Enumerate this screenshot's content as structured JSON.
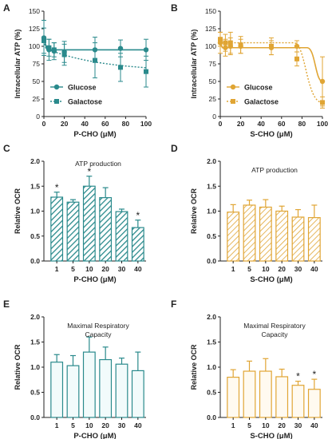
{
  "panel_letters": [
    "A",
    "B",
    "C",
    "D",
    "E",
    "F"
  ],
  "colors": {
    "teal": "#2a8a8c",
    "orange": "#e0a534",
    "axis": "#222222"
  },
  "chart_data": [
    {
      "panel": "A",
      "type": "line",
      "xlabel": "P-CHO (μM)",
      "ylabel": "Intracellular ATP (%)",
      "xlim": [
        0,
        100
      ],
      "ylim": [
        0,
        150
      ],
      "xticks": [
        0,
        20,
        40,
        60,
        80,
        100
      ],
      "yticks": [
        0,
        25,
        50,
        75,
        100,
        125,
        150
      ],
      "legend_position": "bottom-left",
      "series": [
        {
          "name": "Glucose",
          "marker": "circle",
          "line": "solid",
          "x": [
            0,
            5,
            10,
            20,
            50,
            75,
            100
          ],
          "y": [
            112,
            95,
            93,
            92,
            95,
            97,
            95
          ],
          "err": [
            25,
            15,
            12,
            15,
            18,
            12,
            15
          ]
        },
        {
          "name": "Galactose",
          "marker": "square",
          "line": "dotted",
          "x": [
            0,
            5,
            10,
            20,
            50,
            75,
            100
          ],
          "y": [
            108,
            98,
            95,
            88,
            80,
            70,
            64
          ],
          "err": [
            18,
            12,
            10,
            15,
            25,
            20,
            22
          ]
        }
      ]
    },
    {
      "panel": "B",
      "type": "line",
      "xlabel": "S-CHO (μM)",
      "ylabel": "Intracellular ATP (%)",
      "xlim": [
        0,
        100
      ],
      "ylim": [
        0,
        150
      ],
      "xticks": [
        0,
        20,
        40,
        60,
        80,
        100
      ],
      "yticks": [
        0,
        25,
        50,
        75,
        100,
        125,
        150
      ],
      "legend_position": "bottom-left",
      "series": [
        {
          "name": "Glucose",
          "marker": "circle",
          "line": "solid",
          "x": [
            0,
            5,
            10,
            20,
            50,
            75,
            100
          ],
          "y": [
            105,
            98,
            100,
            100,
            98,
            100,
            50
          ],
          "err": [
            15,
            12,
            12,
            10,
            10,
            8,
            35
          ]
        },
        {
          "name": "Galactose",
          "marker": "square",
          "line": "dotted",
          "x": [
            0,
            5,
            10,
            20,
            50,
            75,
            100
          ],
          "y": [
            110,
            105,
            105,
            102,
            100,
            82,
            20
          ],
          "err": [
            10,
            12,
            15,
            12,
            12,
            10,
            8
          ]
        }
      ]
    },
    {
      "panel": "C",
      "type": "bar",
      "style": "hatched",
      "color": "teal",
      "annotation": "ATP production",
      "categories": [
        "1",
        "5",
        "10",
        "20",
        "30",
        "40"
      ],
      "values": [
        1.28,
        1.18,
        1.5,
        1.27,
        0.99,
        0.67
      ],
      "err": [
        0.1,
        0.05,
        0.2,
        0.2,
        0.05,
        0.15
      ],
      "significance": [
        "*",
        "",
        "*",
        "",
        "",
        "*"
      ],
      "xlabel": "P-CHO (μM)",
      "ylabel": "Relative OCR",
      "ylim": [
        0,
        2
      ],
      "yticks": [
        "0.0",
        "0.5",
        "1.0",
        "1.5",
        "2.0"
      ]
    },
    {
      "panel": "D",
      "type": "bar",
      "style": "hatched",
      "color": "orange",
      "annotation": "ATP production",
      "categories": [
        "1",
        "5",
        "10",
        "20",
        "30",
        "40"
      ],
      "values": [
        0.98,
        1.12,
        1.08,
        1.0,
        0.88,
        0.87
      ],
      "err": [
        0.15,
        0.1,
        0.15,
        0.1,
        0.15,
        0.25
      ],
      "significance": [
        "",
        "",
        "",
        "",
        "",
        ""
      ],
      "xlabel": "S-CHO (μM)",
      "ylabel": "Relative OCR",
      "ylim": [
        0,
        2
      ],
      "yticks": [
        "0.0",
        "0.5",
        "1.0",
        "1.5",
        "2.0"
      ]
    },
    {
      "panel": "E",
      "type": "bar",
      "style": "open",
      "color": "teal",
      "annotation": "Maximal Respiratory Capacity",
      "annotation_lines": [
        "Maximal Respiratory",
        "Capacity"
      ],
      "categories": [
        "1",
        "5",
        "10",
        "20",
        "30",
        "40"
      ],
      "values": [
        1.1,
        1.03,
        1.3,
        1.15,
        1.06,
        0.93
      ],
      "err": [
        0.15,
        0.2,
        0.3,
        0.25,
        0.12,
        0.37
      ],
      "significance": [
        "",
        "",
        "",
        "",
        "",
        ""
      ],
      "xlabel": "P-CHO (μM)",
      "ylabel": "Relative OCR",
      "ylim": [
        0,
        2
      ],
      "yticks": [
        "0.0",
        "0.5",
        "1.0",
        "1.5",
        "2.0"
      ]
    },
    {
      "panel": "F",
      "type": "bar",
      "style": "open",
      "color": "orange",
      "annotation": "Maximal Respiratory Capacity",
      "annotation_lines": [
        "Maximal Respiratory",
        "Capacity"
      ],
      "categories": [
        "1",
        "5",
        "10",
        "20",
        "30",
        "40"
      ],
      "values": [
        0.8,
        0.92,
        0.92,
        0.81,
        0.64,
        0.56
      ],
      "err": [
        0.15,
        0.2,
        0.25,
        0.15,
        0.08,
        0.2
      ],
      "significance": [
        "",
        "",
        "",
        "",
        "*",
        "*"
      ],
      "xlabel": "S-CHO (μM)",
      "ylabel": "Relative OCR",
      "ylim": [
        0,
        2
      ],
      "yticks": [
        "0.0",
        "0.5",
        "1.0",
        "1.5",
        "2.0"
      ]
    }
  ]
}
